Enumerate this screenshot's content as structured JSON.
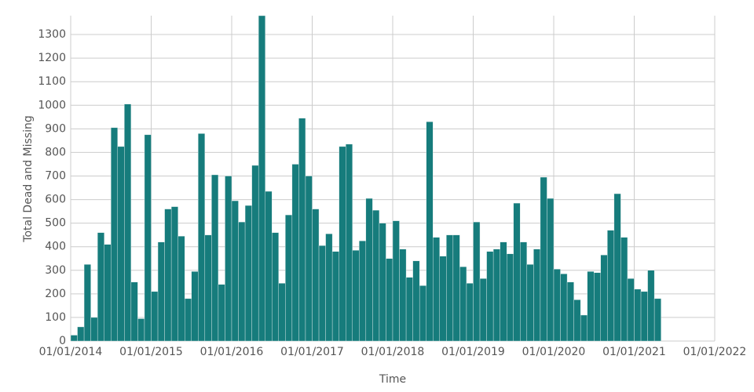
{
  "chart_data": {
    "type": "histogram",
    "x_label": "Time",
    "y_label": "Total Dead and Missing",
    "bins": [
      0,
      1,
      2,
      3,
      4,
      5,
      6,
      7,
      8,
      9,
      10,
      11,
      12,
      13,
      14,
      15,
      16,
      17,
      18,
      19,
      20,
      21,
      22,
      23,
      24,
      25,
      26,
      27,
      28,
      29,
      30,
      31,
      32,
      33,
      34,
      35,
      36,
      37,
      38,
      39,
      40,
      41,
      42,
      43,
      44,
      45,
      46,
      47,
      48,
      49,
      50,
      51,
      52,
      53,
      54,
      55,
      56,
      57,
      58,
      59,
      60,
      61,
      62,
      63,
      64,
      65,
      66,
      67,
      68,
      69,
      70,
      71,
      72,
      73,
      74,
      75,
      76,
      77,
      78,
      79,
      80,
      81,
      82,
      83,
      84,
      85,
      86,
      87,
      88
    ],
    "values": [
      25,
      60,
      325,
      100,
      460,
      410,
      905,
      825,
      1005,
      250,
      95,
      875,
      210,
      420,
      560,
      570,
      445,
      180,
      295,
      880,
      450,
      705,
      240,
      700,
      595,
      505,
      575,
      745,
      1380,
      635,
      460,
      245,
      535,
      750,
      945,
      700,
      560,
      405,
      455,
      380,
      825,
      835,
      385,
      425,
      605,
      555,
      500,
      350,
      510,
      390,
      270,
      340,
      235,
      930,
      440,
      360,
      450,
      450,
      315,
      245,
      505,
      265,
      380,
      390,
      420,
      370,
      585,
      420,
      325,
      390,
      695,
      605,
      305,
      285,
      250,
      175,
      110,
      295,
      290,
      365,
      470,
      625,
      440,
      265,
      220,
      210,
      300,
      180
    ],
    "color": "#167c7c",
    "xlim": [
      0,
      96
    ],
    "xticks": [
      {
        "value": 0,
        "label": "01/01/2014"
      },
      {
        "value": 12,
        "label": "01/01/2015"
      },
      {
        "value": 24,
        "label": "01/01/2016"
      },
      {
        "value": 36,
        "label": "01/01/2017"
      },
      {
        "value": 48,
        "label": "01/01/2018"
      },
      {
        "value": 60,
        "label": "01/01/2019"
      },
      {
        "value": 72,
        "label": "01/01/2020"
      },
      {
        "value": 84,
        "label": "01/01/2021"
      },
      {
        "value": 96,
        "label": "01/01/2022"
      }
    ],
    "ylim": [
      0,
      1380
    ],
    "yticks": [
      0,
      100,
      200,
      300,
      400,
      500,
      600,
      700,
      800,
      900,
      1000,
      1100,
      1200,
      1300
    ],
    "grid": true
  }
}
